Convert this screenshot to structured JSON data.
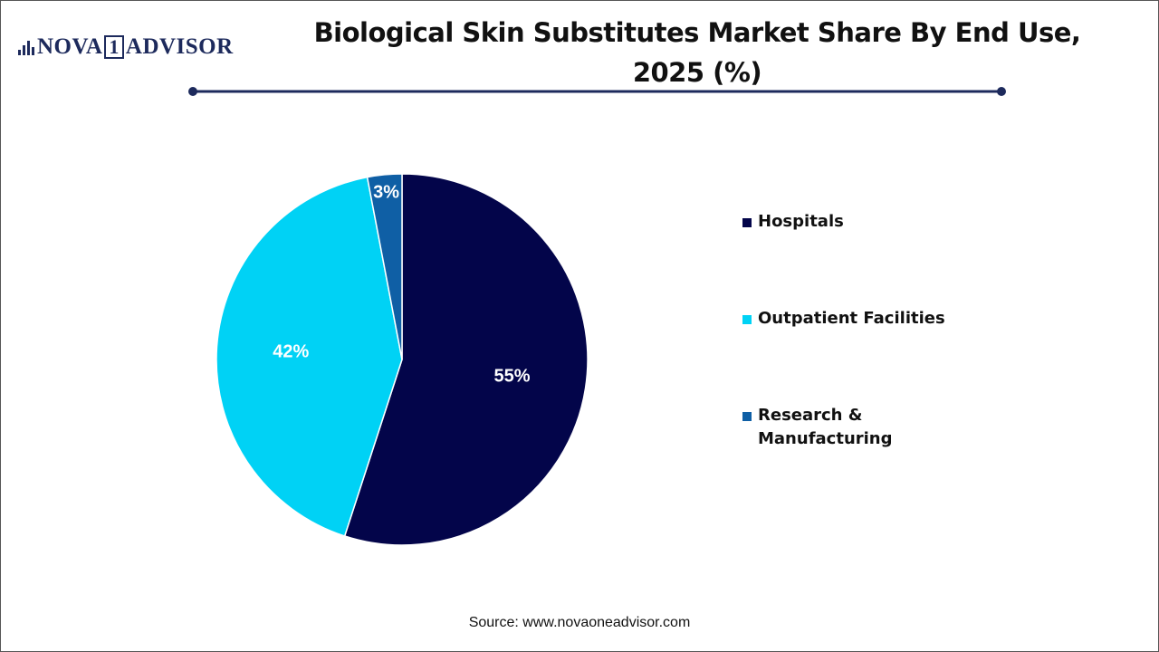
{
  "logo": {
    "left": "NOVA",
    "mark": "1",
    "right": "ADVISOR"
  },
  "chart_data": {
    "type": "pie",
    "title": "Biological Skin Substitutes Market Share By End Use, 2025 (%)",
    "categories": [
      "Hospitals",
      "Outpatient Facilities",
      "Research & Manufacturing"
    ],
    "values": [
      55,
      42,
      3
    ],
    "value_labels": [
      "55%",
      "42%",
      "3%"
    ],
    "colors": [
      "#03054a",
      "#00d2f5",
      "#0f5fa5"
    ],
    "legend": "right",
    "source": "Source: www.novaoneadvisor.com"
  }
}
